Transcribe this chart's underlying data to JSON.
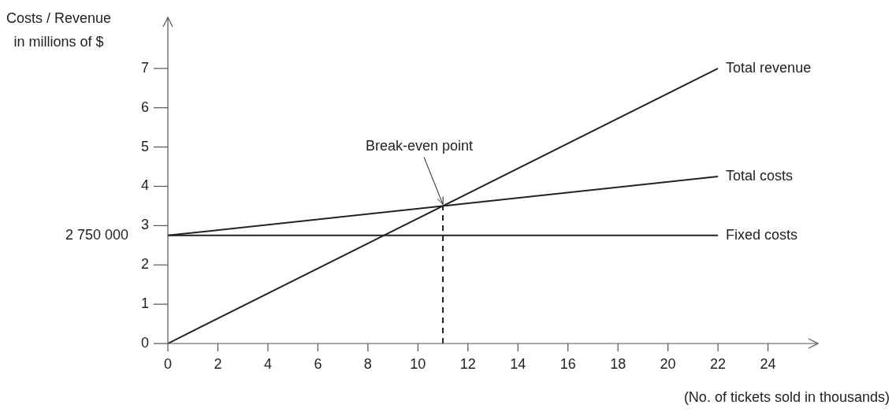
{
  "chart_data": {
    "type": "line",
    "xlabel": "(No. of tickets sold in thousands)",
    "ylabel": "Costs / Revenue\nin millions of $",
    "xlim": [
      0,
      26
    ],
    "xticks": [
      0,
      2,
      4,
      6,
      8,
      10,
      12,
      14,
      16,
      18,
      20,
      22,
      24
    ],
    "ylim": [
      0,
      8.3
    ],
    "yticks": [
      0,
      1,
      2,
      3,
      4,
      5,
      6,
      7
    ],
    "grid": false,
    "legend": false,
    "marker": "none",
    "line_style": "solid",
    "annotations": [
      {
        "text": "Break-even point",
        "x": 11,
        "y": 3.5
      },
      "2 750 000"
    ],
    "series": [
      {
        "name": "Total revenue",
        "color": "#222222",
        "x": [
          0,
          22
        ],
        "values": [
          0,
          7
        ]
      },
      {
        "name": "Total costs",
        "color": "#222222",
        "x": [
          0,
          22
        ],
        "values": [
          2.75,
          4.25
        ]
      },
      {
        "name": "Fixed costs",
        "color": "#222222",
        "x": [
          0,
          22
        ],
        "values": [
          2.75,
          2.75
        ]
      },
      {
        "type": "line",
        "color": "#222222",
        "line_style": "dashed",
        "x": [
          11,
          11
        ],
        "values": [
          0,
          3.5
        ]
      }
    ]
  }
}
